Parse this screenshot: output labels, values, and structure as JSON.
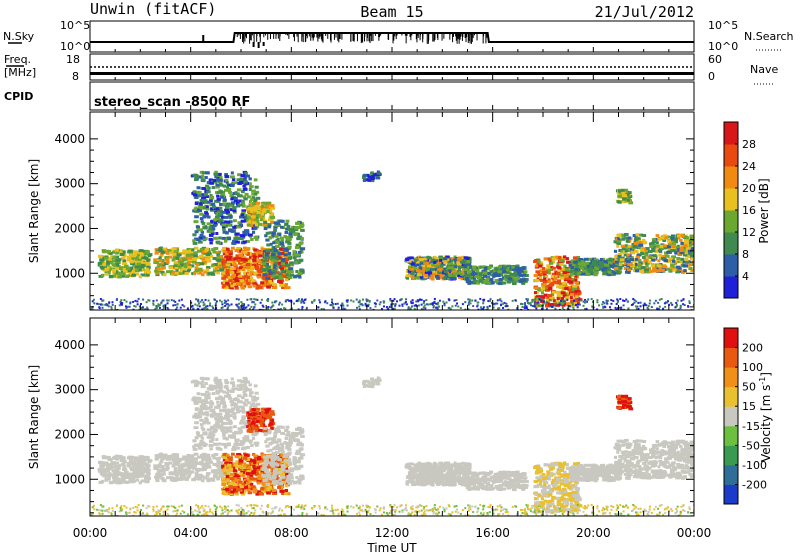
{
  "header": {
    "left_title": "Unwin (fitACF)",
    "center_title": "Beam 15",
    "right_title": "21/Jul/2012"
  },
  "aux_panels": {
    "nsky_label": "N.Sky",
    "nsky_ticks": [
      "10^5",
      "10^0"
    ],
    "nsearch_label": "N.Search",
    "nsearch_ticks": [
      "10^5",
      "10^0"
    ],
    "freq_label_1": "Freq.",
    "freq_label_2": "[MHz]",
    "freq_ticks": [
      "18",
      "8"
    ],
    "nave_label": "Nave",
    "nave_ticks": [
      "60",
      "0"
    ],
    "cpid_label": "CPID",
    "cpid_value": "stereo_scan -8500 RF"
  },
  "chart_data": [
    {
      "type": "heatmap",
      "name": "power",
      "ylabel": "Slant Range [km]",
      "xlabel": "Time UT",
      "x_ticks": [
        "00:00",
        "04:00",
        "08:00",
        "12:00",
        "16:00",
        "20:00",
        "00:00"
      ],
      "x_range_hours": [
        0,
        24
      ],
      "y_ticks": [
        1000,
        2000,
        3000,
        4000
      ],
      "ylim": [
        180,
        4600
      ],
      "colorbar_label": "Power [dB]",
      "colorbar_ticks": [
        4,
        8,
        12,
        16,
        20,
        24,
        28
      ],
      "colorbar_range": [
        0,
        32
      ],
      "colors": [
        "#2020d8",
        "#2e5ea8",
        "#3f8a4e",
        "#6aa830",
        "#e8c020",
        "#f08a10",
        "#e84a10",
        "#d81818"
      ]
    },
    {
      "type": "heatmap",
      "name": "velocity",
      "ylabel": "Slant Range [km]",
      "xlabel": "Time UT",
      "x_ticks": [
        "00:00",
        "04:00",
        "08:00",
        "12:00",
        "16:00",
        "20:00",
        "00:00"
      ],
      "x_range_hours": [
        0,
        24
      ],
      "y_ticks": [
        1000,
        2000,
        3000,
        4000
      ],
      "ylim": [
        180,
        4600
      ],
      "colorbar_label": "Velocity [m s",
      "colorbar_label_sup": "-1",
      "colorbar_ticks": [
        200,
        100,
        50,
        15,
        -15,
        -50,
        -100,
        -200
      ],
      "colors": [
        "#1a3cc8",
        "#2e6e98",
        "#3a9a50",
        "#6cc040",
        "#c8c8c0",
        "#e8c030",
        "#f09018",
        "#e85a10",
        "#e01010"
      ]
    }
  ]
}
